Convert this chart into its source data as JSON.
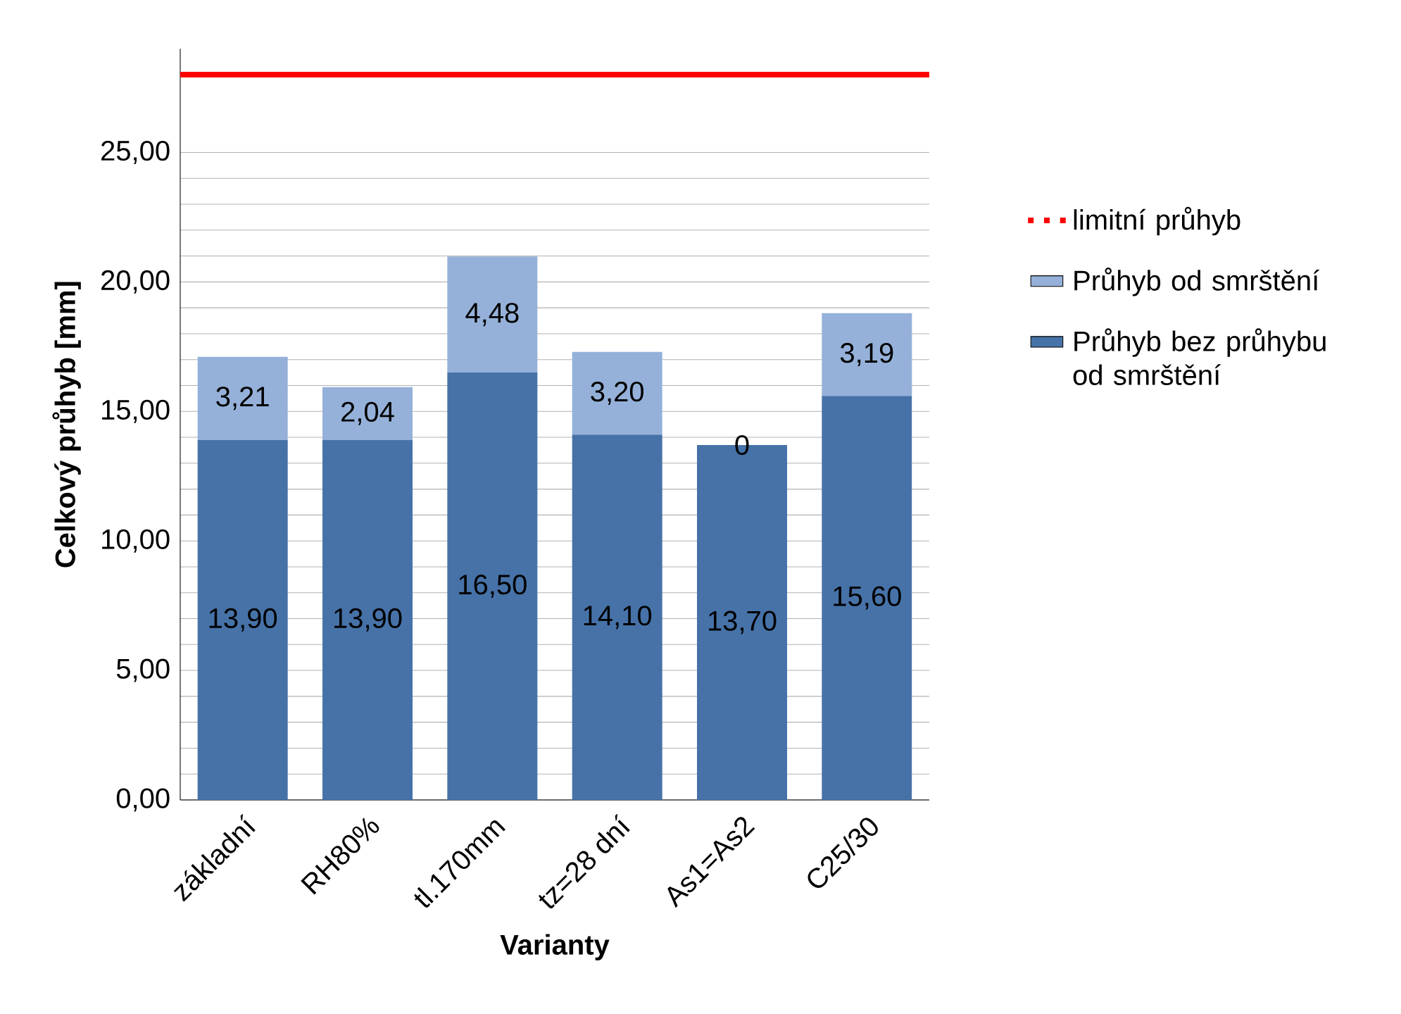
{
  "chart_data": {
    "type": "bar",
    "stacked": true,
    "xlabel": "Varianty",
    "ylabel": "Celkový průhyb [mm]",
    "categories": [
      "základní",
      "RH80%",
      "tl.170mm",
      "tz=28 dní",
      "As1=As2",
      "C25/30"
    ],
    "series": [
      {
        "name": "Průhyb bez průhybu od smrštění",
        "color": "#4672a8",
        "values": [
          13.9,
          13.9,
          16.5,
          14.1,
          13.7,
          15.6
        ],
        "value_labels": [
          "13,90",
          "13,90",
          "16,50",
          "14,10",
          "13,70",
          "15,60"
        ]
      },
      {
        "name": "Průhyb od smrštění",
        "color": "#95b1d9",
        "values": [
          3.21,
          2.04,
          4.48,
          3.2,
          0,
          3.19
        ],
        "value_labels": [
          "3,21",
          "2,04",
          "4,48",
          "3,20",
          "0",
          "3,19"
        ]
      }
    ],
    "ylim": [
      0,
      29
    ],
    "yticks": [
      {
        "value": 0,
        "label": "0,00"
      },
      {
        "value": 5,
        "label": "5,00"
      },
      {
        "value": 10,
        "label": "10,00"
      },
      {
        "value": 15,
        "label": "15,00"
      },
      {
        "value": 20,
        "label": "20,00"
      },
      {
        "value": 25,
        "label": "25,00"
      }
    ],
    "ref_lines": [
      {
        "axis": "y",
        "value": 28,
        "label": "limitní průhyb",
        "color": "#ff0000"
      }
    ],
    "grid": "y",
    "legend": "right"
  }
}
